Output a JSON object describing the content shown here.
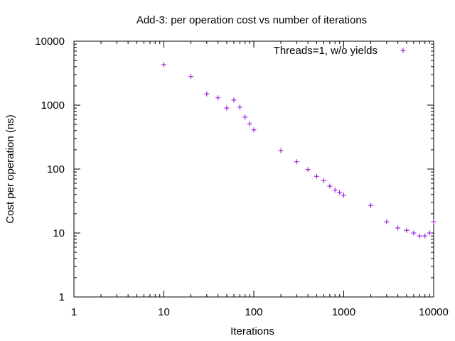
{
  "chart_data": {
    "type": "scatter",
    "title": "Add-3: per operation cost vs number of iterations",
    "xlabel": "Iterations",
    "ylabel": "Cost per operation (ns)",
    "xscale": "log",
    "yscale": "log",
    "xlim": [
      1,
      10000
    ],
    "ylim": [
      1,
      10000
    ],
    "xticks": [
      "1",
      "10",
      "100",
      "1000",
      "10000"
    ],
    "yticks": [
      "1",
      "10",
      "100",
      "1000",
      "10000"
    ],
    "grid": false,
    "legend_position": "top-right",
    "marker": "+",
    "series": [
      {
        "name": "Threads=1, w/o yields",
        "color": "#9400d3",
        "x": [
          10,
          20,
          30,
          40,
          50,
          60,
          70,
          80,
          90,
          100,
          200,
          300,
          400,
          500,
          600,
          700,
          800,
          900,
          1000,
          2000,
          3000,
          4000,
          5000,
          6000,
          7000,
          8000,
          9000,
          10000
        ],
        "y": [
          4300,
          2800,
          1500,
          1300,
          900,
          1200,
          930,
          650,
          510,
          410,
          195,
          130,
          98,
          77,
          66,
          54,
          47,
          43,
          39,
          27,
          15,
          12,
          11,
          10,
          9,
          9,
          10,
          15
        ]
      }
    ]
  }
}
